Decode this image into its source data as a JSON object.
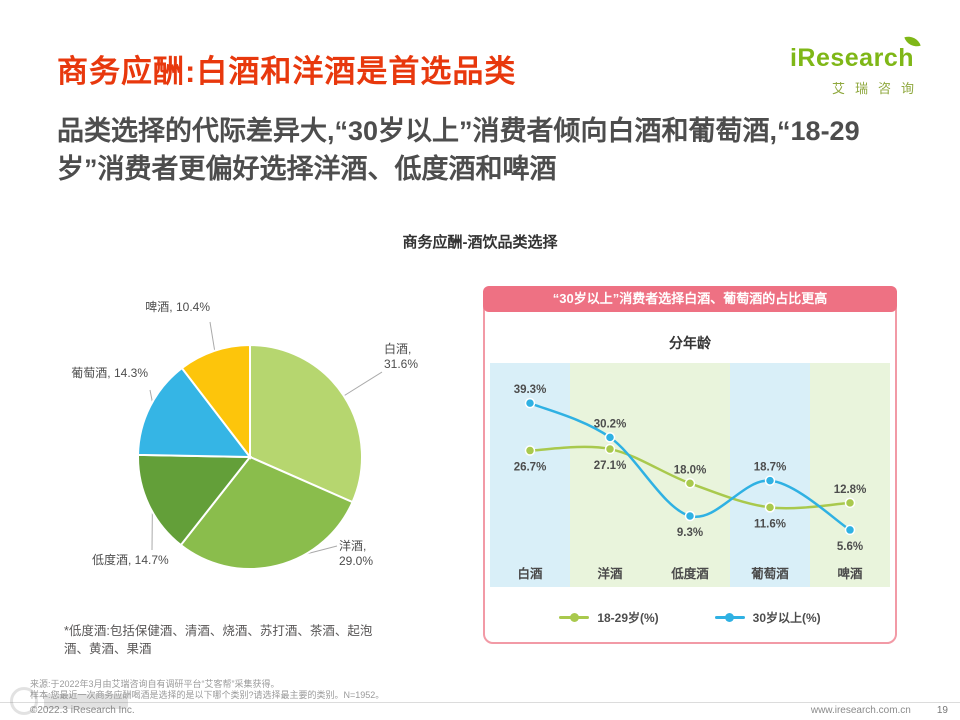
{
  "page": {
    "title": "商务应酬:白酒和洋酒是首选品类",
    "subtitle": "品类选择的代际差异大,“30岁以上”消费者倾向白酒和葡萄酒,“18-29岁”消费者更偏好选择洋酒、低度酒和啤酒"
  },
  "logo": {
    "brand": "iResearch",
    "cn": "艾瑞咨询"
  },
  "chart_data": [
    {
      "type": "pie",
      "title": "商务应酬-酒饮品类选择",
      "labels": [
        "白酒",
        "洋酒",
        "低度酒",
        "葡萄酒",
        "啤酒"
      ],
      "values": [
        31.6,
        29.0,
        14.7,
        14.3,
        10.4
      ],
      "colors": [
        "#B6D66F",
        "#8ABD4C",
        "#639F39",
        "#35B5E5",
        "#FDC50B"
      ],
      "start_angle_deg": 0,
      "direction": "clockwise"
    },
    {
      "type": "line",
      "banner": "“30岁以上”消费者选择白酒、葡萄酒的占比更高",
      "title": "分年龄",
      "categories": [
        "白酒",
        "洋酒",
        "低度酒",
        "葡萄酒",
        "啤酒"
      ],
      "series": [
        {
          "name": "18-29岁(%)",
          "color": "#A9C94D",
          "values": [
            26.7,
            27.1,
            18.0,
            11.6,
            12.8
          ]
        },
        {
          "name": "30岁以上(%)",
          "color": "#2FB1E3",
          "values": [
            39.3,
            30.2,
            9.3,
            18.7,
            5.6
          ]
        }
      ],
      "highlighted_categories": [
        "白酒",
        "葡萄酒"
      ],
      "band_color": "#E9F4DC",
      "band_highlight_color": "#D9EFF8",
      "ylim": [
        0,
        42
      ],
      "legend_position": "bottom"
    }
  ],
  "notes": {
    "footnote": "*低度酒:包括保健酒、清酒、烧酒、苏打酒、茶酒、起泡酒、黄酒、果酒",
    "source": "来源:于2022年3月由艾瑞咨询自有调研平台“艾客帮”采集获得。",
    "sample": "样本:您最近一次商务应酬喝酒是选择的是以下哪个类别?请选择最主要的类别。N=1952。"
  },
  "footer": {
    "copyright": "©2022.3 iResearch Inc.",
    "website": "www.iresearch.com.cn",
    "page": "19"
  },
  "colors": {
    "title": "#E8380D",
    "accent_pink": "#EE7183"
  }
}
